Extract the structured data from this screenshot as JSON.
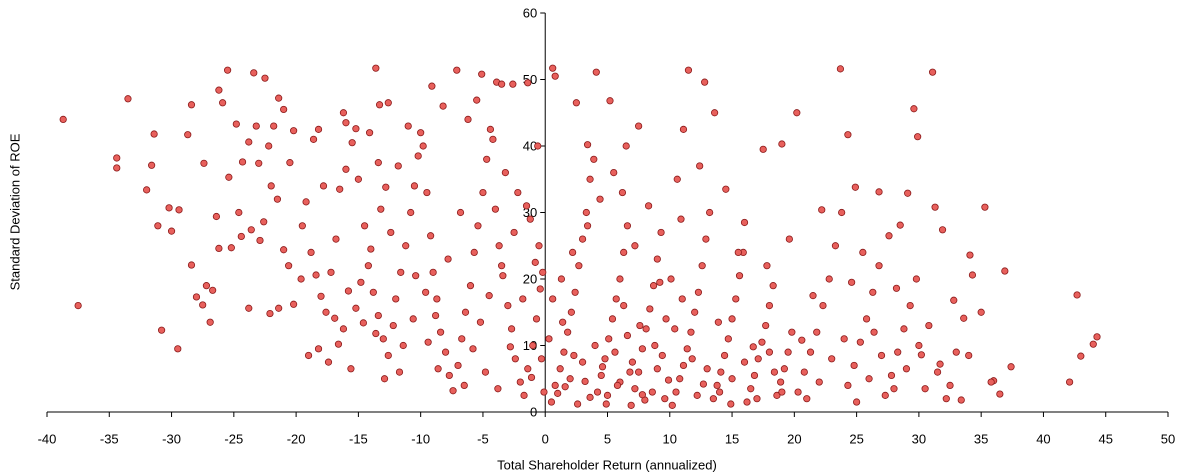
{
  "chart_data": {
    "type": "scatter",
    "x_label": "Total Shareholder Return (annualized)",
    "y_label": "Standard Deviation of ROE",
    "xlim": [
      -40,
      50
    ],
    "xticks": [
      -40,
      -35,
      -30,
      -25,
      -20,
      -15,
      -10,
      -5,
      0,
      5,
      10,
      15,
      20,
      25,
      30,
      35,
      40,
      45,
      50
    ],
    "ylim": [
      0,
      60
    ],
    "yticks": [
      0,
      10,
      20,
      30,
      40,
      50,
      60
    ],
    "grid": false,
    "color": "#e8605c",
    "edgecolor": "#8b1a1a",
    "x": [
      -38.7,
      -33.5,
      -34.4,
      -34.4,
      -37.5,
      -30.8,
      -29.5,
      -31.4,
      -32,
      -31.6,
      -31.1,
      -30.2,
      -30,
      -28.4,
      -28.7,
      -25.5,
      -23.4,
      -22.5,
      -21.4,
      -26.2,
      -25.9,
      -24.8,
      -23.2,
      -23.8,
      -24.3,
      -23,
      -25.2,
      -26.9,
      -26.7,
      -28,
      -27.5,
      -23.8,
      -29.4,
      -27.4,
      -26.4,
      -25.4,
      -24.6,
      -23.6,
      -22.9,
      -22.6,
      -22,
      -21.5,
      -21,
      -20.6,
      -20.2,
      -21.4,
      -22.1,
      -24.4,
      -26.2,
      -27.2,
      -28.4,
      -20.5,
      -20.2,
      -21,
      -22.2,
      -21.8,
      -19.5,
      -19.2,
      -18.8,
      -18.4,
      -18,
      -17.6,
      -17.2,
      -16.8,
      -16.5,
      -16,
      -15.5,
      -15,
      -14.5,
      -14.2,
      -13.8,
      -13.4,
      -13,
      -12.6,
      -12.2,
      -12,
      -11.6,
      -11.2,
      -10.8,
      -10.5,
      -10.2,
      -10,
      -19,
      -18.2,
      -17.4,
      -16.6,
      -16.2,
      -15.6,
      -15.2,
      -14.8,
      -14,
      -13.2,
      -12.8,
      -11.8,
      -11,
      -12.4,
      -17.8,
      -18.6,
      -19.6,
      -11.4,
      -10.6,
      -10.4,
      -13.6,
      -14.6,
      -15.8,
      -16.9,
      -11.7,
      -12.9,
      -18.2,
      -14.1,
      -13.4,
      -9.8,
      -9.5,
      -9.2,
      -9,
      -8.7,
      -8.4,
      -8,
      -7.7,
      -7.4,
      -7,
      -6.7,
      -6.4,
      -6,
      -5.7,
      -5.4,
      -5,
      -4.7,
      -4.4,
      -4,
      -3.7,
      -3.4,
      -3,
      -2.7,
      -2.4,
      -2,
      -1.7,
      -1.4,
      -1,
      -0.7,
      -0.4,
      -0.2,
      -0.5,
      -1.2,
      -2.2,
      -3.2,
      -4.2,
      -6.2,
      -8.2,
      -9.6,
      -8.8,
      -7.8,
      -6.8,
      -5.8,
      -4.8,
      -3.8,
      -2.8,
      -1.8,
      -0.8,
      -9.4,
      -8.6,
      -6.5,
      -5.2,
      -4.5,
      -3.5,
      -2.5,
      -1.5,
      -0.6,
      -0.3,
      -1.1,
      -0.1,
      -9.1,
      -7.1,
      -5.1,
      -3.9,
      -3.5,
      -5.5,
      -2.6,
      -1.4,
      -13.6,
      -16.2,
      -16,
      -15.2,
      -13.3,
      -12.6,
      0.5,
      0.8,
      1.2,
      1.5,
      1.8,
      2.1,
      2.4,
      2.7,
      3,
      3.3,
      3.6,
      3.9,
      4.2,
      4.5,
      4.8,
      5.1,
      5.4,
      5.7,
      6,
      6.3,
      6.6,
      6.9,
      7.2,
      7.5,
      7.8,
      8.1,
      8.4,
      8.7,
      9,
      9.3,
      9.6,
      9.9,
      1,
      2,
      3,
      4,
      5,
      6,
      7,
      8,
      9,
      1.6,
      2.6,
      3.6,
      4.6,
      5.6,
      6.6,
      7.6,
      8.6,
      9.4,
      0.3,
      0.6,
      1.3,
      2.2,
      3.4,
      4.4,
      5.5,
      6.5,
      7.5,
      4.1,
      0.8,
      0.6,
      2.5,
      5.2,
      3.4,
      6.2,
      8.3,
      7.2,
      5.8,
      4.9,
      3.2,
      2.3,
      1.4,
      6.8,
      7.8,
      8.8,
      9.7,
      6.3,
      9.2,
      10.2,
      10.5,
      10.8,
      11.1,
      11.4,
      11.7,
      12,
      12.3,
      12.6,
      12.9,
      13.2,
      13.5,
      13.8,
      14.1,
      14.4,
      14.7,
      15,
      15.3,
      15.6,
      15.9,
      16.2,
      16.5,
      16.8,
      17.1,
      17.4,
      17.7,
      18,
      18.3,
      18.6,
      18.9,
      19.2,
      19.5,
      19.8,
      10.4,
      11,
      12.2,
      13,
      14,
      15,
      16,
      17,
      18,
      19,
      11.5,
      12.8,
      11.1,
      12.4,
      14.5,
      16,
      17.5,
      19,
      20.2,
      10.6,
      13.6,
      15.5,
      17.8,
      19.6,
      10.9,
      12.7,
      14.9,
      16.7,
      18.4,
      13.9,
      11.8,
      10.1,
      20.3,
      20.8,
      21.3,
      21.8,
      22.3,
      22.8,
      23.3,
      23.8,
      24.3,
      24.8,
      25.3,
      25.8,
      26.3,
      26.8,
      27.3,
      27.8,
      28.3,
      28.8,
      29.3,
      29.8,
      21,
      22,
      23,
      24,
      25,
      26,
      27,
      28,
      29,
      30,
      23.7,
      24.3,
      24.9,
      26.8,
      29.1,
      28.5,
      29.9,
      29.6,
      22.2,
      25.5,
      27.6,
      21.5,
      24.6,
      26.4,
      28.2,
      20.6,
      31.1,
      31.3,
      31.9,
      32.8,
      33.6,
      34.1,
      34.3,
      35.3,
      36.9,
      36,
      36.5,
      35.8,
      37.4,
      42.7,
      44.3,
      44,
      43,
      42.1,
      30.5,
      31.5,
      32.5,
      33,
      34,
      35,
      30.8,
      32.2,
      33.4,
      31.7,
      30.2
    ],
    "values": [
      44,
      47.1,
      38.2,
      36.7,
      16,
      12.3,
      9.5,
      41.8,
      33.4,
      37.1,
      28,
      30.7,
      27.2,
      46.2,
      41.7,
      51.4,
      51,
      50.2,
      47.2,
      48.4,
      46.5,
      43.3,
      43,
      40.6,
      37.6,
      37.4,
      24.7,
      13.5,
      18.3,
      17.3,
      16.1,
      15.6,
      30.4,
      37.4,
      29.4,
      35.3,
      30,
      27.4,
      25.8,
      28.6,
      34,
      32,
      24.4,
      22,
      16.2,
      15.6,
      14.8,
      26.4,
      24.6,
      19,
      22.1,
      37.5,
      42.3,
      45.5,
      40,
      43,
      28,
      31.6,
      24,
      20.6,
      17.4,
      15,
      21,
      26,
      33.5,
      36.5,
      40.5,
      35,
      28,
      22,
      18,
      14.5,
      11,
      8.5,
      13,
      17,
      21,
      25,
      30,
      34,
      38.5,
      42,
      8.5,
      9.5,
      7.5,
      10.2,
      12.5,
      6.5,
      15.6,
      19.5,
      24.5,
      30.5,
      33.8,
      37,
      43,
      27,
      34,
      41,
      20,
      10,
      14,
      20.5,
      11.8,
      13.4,
      18.2,
      14.1,
      6,
      5,
      42.5,
      42,
      37.5,
      40,
      33,
      26.5,
      21,
      17,
      12,
      9,
      5.5,
      3.2,
      7,
      11,
      15,
      19,
      24,
      28,
      33,
      38,
      42.5,
      30.5,
      25,
      20.5,
      16,
      12.5,
      8,
      4.5,
      2.5,
      6.5,
      10,
      14,
      18.5,
      21,
      25,
      29,
      33,
      36,
      41,
      44,
      46,
      18,
      14.5,
      23,
      30,
      9.5,
      6,
      3.5,
      9.8,
      17,
      22.5,
      10.5,
      6.5,
      4,
      13.5,
      17.5,
      22,
      27,
      31,
      40,
      8,
      5.2,
      3,
      49,
      51.4,
      50.8,
      49.6,
      49.3,
      46.9,
      49.3,
      49.5,
      51.7,
      45,
      43.5,
      42.6,
      46.2,
      46.5,
      1.5,
      4,
      6.5,
      9,
      12,
      15,
      18,
      22,
      26,
      30,
      35,
      38,
      3,
      5.5,
      8,
      11,
      14,
      17,
      20,
      24,
      28,
      1,
      3.5,
      6,
      9.5,
      12.5,
      15.5,
      19,
      23,
      27,
      2,
      4.8,
      2.8,
      5,
      7.5,
      10,
      2.5,
      4.5,
      7.5,
      1.8,
      6.5,
      3.8,
      1.2,
      2.2,
      6.8,
      9,
      11.5,
      13,
      3,
      8.5,
      11,
      17,
      20,
      24,
      28,
      32,
      36,
      40,
      43,
      51.1,
      50.5,
      51.7,
      46.5,
      46.8,
      40.2,
      33,
      31,
      25,
      4,
      1.2,
      4.6,
      8.5,
      13.5,
      6,
      2.6,
      10,
      14,
      16,
      19.5,
      1,
      3,
      5,
      7,
      9.5,
      12,
      15,
      18,
      22,
      26,
      30,
      2,
      4,
      6,
      8.5,
      11,
      14,
      17,
      20.5,
      24,
      1.5,
      3.5,
      5.5,
      8,
      10.5,
      13,
      16,
      19,
      2.5,
      4.5,
      6.5,
      9,
      12,
      12.5,
      17,
      2.5,
      6.5,
      3,
      5,
      7.5,
      2,
      9,
      3,
      51.4,
      49.6,
      42.5,
      37,
      33.5,
      28.5,
      39.5,
      40.3,
      45,
      35,
      45,
      24,
      22,
      26,
      29,
      4.2,
      1.2,
      9.8,
      6,
      13.5,
      8,
      20,
      3,
      6,
      9,
      12,
      16,
      20,
      25,
      30,
      4,
      7,
      10.5,
      14,
      18,
      22,
      2.5,
      5.5,
      9,
      12.5,
      16,
      20,
      2,
      4.5,
      8,
      11,
      1.5,
      5,
      8.5,
      3.5,
      6.5,
      10,
      51.6,
      41.7,
      33.8,
      33.1,
      32.9,
      28.1,
      41.4,
      45.6,
      30.4,
      24,
      26.5,
      17.5,
      19.5,
      12,
      18.6,
      10.8,
      51.1,
      30.8,
      27.4,
      16.8,
      14.1,
      23.6,
      20.6,
      30.8,
      21.2,
      4.7,
      2.7,
      4.5,
      6.8,
      17.6,
      11.3,
      10.2,
      8.4,
      4.5,
      3.5,
      6,
      4,
      9,
      8.5,
      15,
      13,
      2,
      1.8,
      7.2,
      8.6
    ]
  }
}
